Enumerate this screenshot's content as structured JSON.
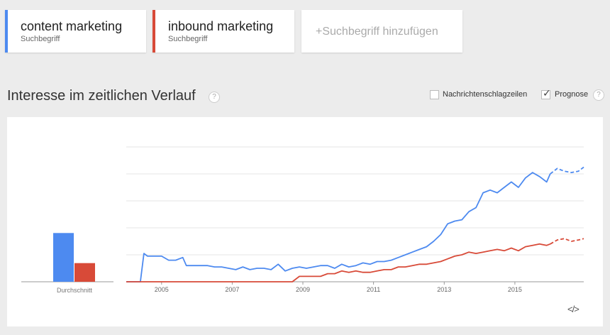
{
  "search_terms": [
    {
      "name": "content marketing",
      "subtitle": "Suchbegriff",
      "color": "#4d8af0"
    },
    {
      "name": "inbound marketing",
      "subtitle": "Suchbegriff",
      "color": "#d84a38"
    }
  ],
  "add_term_label": "+Suchbegriff hinzufügen",
  "section": {
    "title": "Interesse im zeitlichen Verlauf",
    "help_glyph": "?"
  },
  "options": {
    "news_label": "Nachrichtenschlagzeilen",
    "news_checked": false,
    "prognose_label": "Prognose",
    "prognose_checked": true,
    "check_glyph": "✓"
  },
  "embed_glyph": "</>",
  "chart_data": [
    {
      "type": "bar",
      "categories": [
        "Durchschnitt"
      ],
      "series": [
        {
          "name": "content marketing",
          "values": [
            34
          ]
        },
        {
          "name": "inbound marketing",
          "values": [
            13
          ]
        }
      ],
      "ylim": [
        0,
        100
      ]
    },
    {
      "type": "line",
      "xlabel": "",
      "ylabel": "",
      "ylim": [
        0,
        100
      ],
      "grid": true,
      "x_ticks": [
        "2005",
        "2007",
        "2009",
        "2011",
        "2013",
        "2015"
      ],
      "x_tick_values": [
        2005,
        2007,
        2009,
        2011,
        2013,
        2015
      ],
      "xlim": [
        2004,
        2016.95
      ],
      "forecast_start": 2016.0,
      "series": [
        {
          "name": "content marketing",
          "color": "#4d8af0",
          "points": [
            [
              2004.0,
              0
            ],
            [
              2004.4,
              0
            ],
            [
              2004.5,
              21
            ],
            [
              2004.6,
              19
            ],
            [
              2004.8,
              19
            ],
            [
              2005.0,
              19
            ],
            [
              2005.2,
              16
            ],
            [
              2005.4,
              16
            ],
            [
              2005.6,
              18
            ],
            [
              2005.7,
              12
            ],
            [
              2005.9,
              12
            ],
            [
              2006.1,
              12
            ],
            [
              2006.3,
              12
            ],
            [
              2006.5,
              11
            ],
            [
              2006.7,
              11
            ],
            [
              2006.9,
              10
            ],
            [
              2007.1,
              9
            ],
            [
              2007.3,
              11
            ],
            [
              2007.5,
              9
            ],
            [
              2007.7,
              10
            ],
            [
              2007.9,
              10
            ],
            [
              2008.1,
              9
            ],
            [
              2008.3,
              13
            ],
            [
              2008.5,
              8
            ],
            [
              2008.7,
              10
            ],
            [
              2008.9,
              11
            ],
            [
              2009.1,
              10
            ],
            [
              2009.3,
              11
            ],
            [
              2009.5,
              12
            ],
            [
              2009.7,
              12
            ],
            [
              2009.9,
              10
            ],
            [
              2010.1,
              13
            ],
            [
              2010.3,
              11
            ],
            [
              2010.5,
              12
            ],
            [
              2010.7,
              14
            ],
            [
              2010.9,
              13
            ],
            [
              2011.1,
              15
            ],
            [
              2011.3,
              15
            ],
            [
              2011.5,
              16
            ],
            [
              2011.7,
              18
            ],
            [
              2011.9,
              20
            ],
            [
              2012.1,
              22
            ],
            [
              2012.3,
              24
            ],
            [
              2012.5,
              26
            ],
            [
              2012.7,
              30
            ],
            [
              2012.9,
              35
            ],
            [
              2013.1,
              43
            ],
            [
              2013.3,
              45
            ],
            [
              2013.5,
              46
            ],
            [
              2013.7,
              52
            ],
            [
              2013.9,
              55
            ],
            [
              2014.1,
              66
            ],
            [
              2014.3,
              68
            ],
            [
              2014.5,
              66
            ],
            [
              2014.7,
              70
            ],
            [
              2014.9,
              74
            ],
            [
              2015.1,
              70
            ],
            [
              2015.3,
              77
            ],
            [
              2015.5,
              81
            ],
            [
              2015.7,
              78
            ],
            [
              2015.9,
              74
            ],
            [
              2016.0,
              80
            ]
          ]
        },
        {
          "name": "content marketing (Prognose)",
          "color": "#4d8af0",
          "dashed": true,
          "points": [
            [
              2016.0,
              80
            ],
            [
              2016.2,
              84
            ],
            [
              2016.4,
              82
            ],
            [
              2016.6,
              81
            ],
            [
              2016.8,
              82
            ],
            [
              2016.95,
              85
            ]
          ]
        },
        {
          "name": "inbound marketing",
          "color": "#d84a38",
          "points": [
            [
              2004.0,
              0
            ],
            [
              2008.7,
              0
            ],
            [
              2008.9,
              4
            ],
            [
              2009.2,
              4
            ],
            [
              2009.5,
              4
            ],
            [
              2009.7,
              6
            ],
            [
              2009.9,
              6
            ],
            [
              2010.1,
              8
            ],
            [
              2010.3,
              7
            ],
            [
              2010.5,
              8
            ],
            [
              2010.7,
              7
            ],
            [
              2010.9,
              7
            ],
            [
              2011.1,
              8
            ],
            [
              2011.3,
              9
            ],
            [
              2011.5,
              9
            ],
            [
              2011.7,
              11
            ],
            [
              2011.9,
              11
            ],
            [
              2012.1,
              12
            ],
            [
              2012.3,
              13
            ],
            [
              2012.5,
              13
            ],
            [
              2012.7,
              14
            ],
            [
              2012.9,
              15
            ],
            [
              2013.1,
              17
            ],
            [
              2013.3,
              19
            ],
            [
              2013.5,
              20
            ],
            [
              2013.7,
              22
            ],
            [
              2013.9,
              21
            ],
            [
              2014.1,
              22
            ],
            [
              2014.3,
              23
            ],
            [
              2014.5,
              24
            ],
            [
              2014.7,
              23
            ],
            [
              2014.9,
              25
            ],
            [
              2015.1,
              23
            ],
            [
              2015.3,
              26
            ],
            [
              2015.5,
              27
            ],
            [
              2015.7,
              28
            ],
            [
              2015.9,
              27
            ],
            [
              2016.0,
              28
            ]
          ]
        },
        {
          "name": "inbound marketing (Prognose)",
          "color": "#d84a38",
          "dashed": true,
          "points": [
            [
              2016.0,
              28
            ],
            [
              2016.2,
              31
            ],
            [
              2016.4,
              32
            ],
            [
              2016.6,
              30
            ],
            [
              2016.8,
              31
            ],
            [
              2016.95,
              32
            ]
          ]
        }
      ]
    }
  ]
}
